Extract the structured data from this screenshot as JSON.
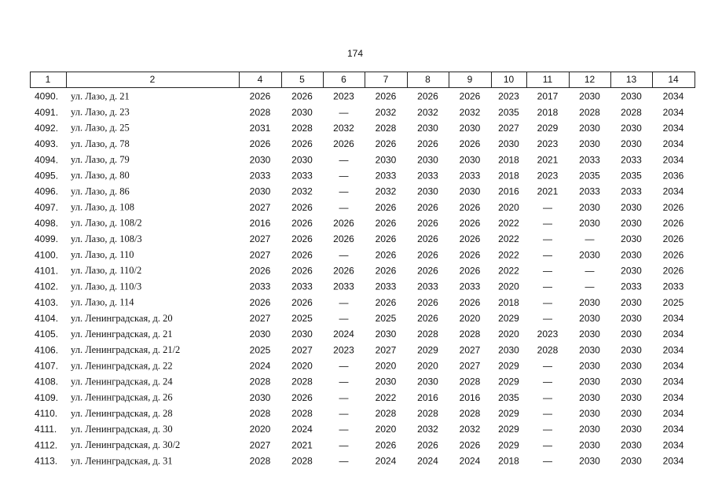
{
  "page_number": "174",
  "table": {
    "header": [
      "1",
      "2",
      "4",
      "5",
      "6",
      "7",
      "8",
      "9",
      "10",
      "11",
      "12",
      "13",
      "14"
    ],
    "rows": [
      [
        "4090.",
        "ул. Лазо, д. 21",
        "2026",
        "2026",
        "2023",
        "2026",
        "2026",
        "2026",
        "2023",
        "2017",
        "2030",
        "2030",
        "2034"
      ],
      [
        "4091.",
        "ул. Лазо, д. 23",
        "2028",
        "2030",
        "—",
        "2032",
        "2032",
        "2032",
        "2035",
        "2018",
        "2028",
        "2028",
        "2034"
      ],
      [
        "4092.",
        "ул. Лазо, д. 25",
        "2031",
        "2028",
        "2032",
        "2028",
        "2030",
        "2030",
        "2027",
        "2029",
        "2030",
        "2030",
        "2034"
      ],
      [
        "4093.",
        "ул. Лазо, д. 78",
        "2026",
        "2026",
        "2026",
        "2026",
        "2026",
        "2026",
        "2030",
        "2023",
        "2030",
        "2030",
        "2034"
      ],
      [
        "4094.",
        "ул. Лазо, д. 79",
        "2030",
        "2030",
        "—",
        "2030",
        "2030",
        "2030",
        "2018",
        "2021",
        "2033",
        "2033",
        "2034"
      ],
      [
        "4095.",
        "ул. Лазо, д. 80",
        "2033",
        "2033",
        "—",
        "2033",
        "2033",
        "2033",
        "2018",
        "2023",
        "2035",
        "2035",
        "2036"
      ],
      [
        "4096.",
        "ул. Лазо, д. 86",
        "2030",
        "2032",
        "—",
        "2032",
        "2030",
        "2030",
        "2016",
        "2021",
        "2033",
        "2033",
        "2034"
      ],
      [
        "4097.",
        "ул. Лазо, д. 108",
        "2027",
        "2026",
        "—",
        "2026",
        "2026",
        "2026",
        "2020",
        "—",
        "2030",
        "2030",
        "2026"
      ],
      [
        "4098.",
        "ул. Лазо, д. 108/2",
        "2016",
        "2026",
        "2026",
        "2026",
        "2026",
        "2026",
        "2022",
        "—",
        "2030",
        "2030",
        "2026"
      ],
      [
        "4099.",
        "ул. Лазо, д. 108/3",
        "2027",
        "2026",
        "2026",
        "2026",
        "2026",
        "2026",
        "2022",
        "—",
        "—",
        "2030",
        "2026"
      ],
      [
        "4100.",
        "ул. Лазо, д. 110",
        "2027",
        "2026",
        "—",
        "2026",
        "2026",
        "2026",
        "2022",
        "—",
        "2030",
        "2030",
        "2026"
      ],
      [
        "4101.",
        "ул. Лазо, д. 110/2",
        "2026",
        "2026",
        "2026",
        "2026",
        "2026",
        "2026",
        "2022",
        "—",
        "—",
        "2030",
        "2026"
      ],
      [
        "4102.",
        "ул. Лазо, д. 110/3",
        "2033",
        "2033",
        "2033",
        "2033",
        "2033",
        "2033",
        "2020",
        "—",
        "—",
        "2033",
        "2033"
      ],
      [
        "4103.",
        "ул. Лазо, д. 114",
        "2026",
        "2026",
        "—",
        "2026",
        "2026",
        "2026",
        "2018",
        "—",
        "2030",
        "2030",
        "2025"
      ],
      [
        "4104.",
        "ул. Ленинградская, д. 20",
        "2027",
        "2025",
        "—",
        "2025",
        "2026",
        "2020",
        "2029",
        "—",
        "2030",
        "2030",
        "2034"
      ],
      [
        "4105.",
        "ул. Ленинградская, д. 21",
        "2030",
        "2030",
        "2024",
        "2030",
        "2028",
        "2028",
        "2020",
        "2023",
        "2030",
        "2030",
        "2034"
      ],
      [
        "4106.",
        "ул. Ленинградская, д. 21/2",
        "2025",
        "2027",
        "2023",
        "2027",
        "2029",
        "2027",
        "2030",
        "2028",
        "2030",
        "2030",
        "2034"
      ],
      [
        "4107.",
        "ул. Ленинградская, д. 22",
        "2024",
        "2020",
        "—",
        "2020",
        "2020",
        "2027",
        "2029",
        "—",
        "2030",
        "2030",
        "2034"
      ],
      [
        "4108.",
        "ул. Ленинградская, д. 24",
        "2028",
        "2028",
        "—",
        "2030",
        "2030",
        "2028",
        "2029",
        "—",
        "2030",
        "2030",
        "2034"
      ],
      [
        "4109.",
        "ул. Ленинградская, д. 26",
        "2030",
        "2026",
        "—",
        "2022",
        "2016",
        "2016",
        "2035",
        "—",
        "2030",
        "2030",
        "2034"
      ],
      [
        "4110.",
        "ул. Ленинградская, д. 28",
        "2028",
        "2028",
        "—",
        "2028",
        "2028",
        "2028",
        "2029",
        "—",
        "2030",
        "2030",
        "2034"
      ],
      [
        "4111.",
        "ул. Ленинградская, д. 30",
        "2020",
        "2024",
        "—",
        "2020",
        "2032",
        "2032",
        "2029",
        "—",
        "2030",
        "2030",
        "2034"
      ],
      [
        "4112.",
        "ул. Ленинградская, д. 30/2",
        "2027",
        "2021",
        "—",
        "2026",
        "2026",
        "2026",
        "2029",
        "—",
        "2030",
        "2030",
        "2034"
      ],
      [
        "4113.",
        "ул. Ленинградская, д. 31",
        "2028",
        "2028",
        "—",
        "2024",
        "2024",
        "2024",
        "2018",
        "—",
        "2030",
        "2030",
        "2034"
      ]
    ]
  }
}
